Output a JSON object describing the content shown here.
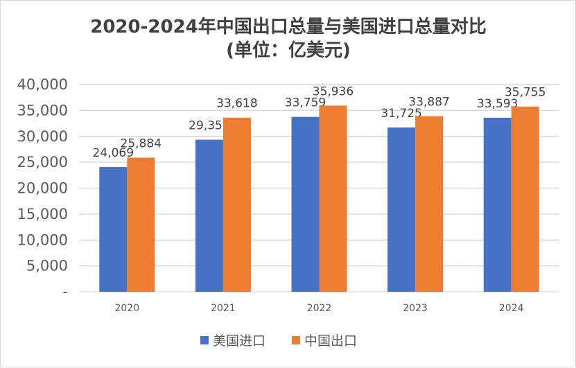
{
  "chart_data": {
    "type": "bar",
    "title": "2020-2024年中国出口总量与美国进口总量对比",
    "subtitle": "(单位：亿美元)",
    "categories": [
      "2020",
      "2021",
      "2022",
      "2023",
      "2024"
    ],
    "series": [
      {
        "name": "美国进口",
        "color": "#4472C4",
        "values": [
          24069,
          29353,
          33759,
          31725,
          33593
        ],
        "labels": [
          "24,069",
          "29,353",
          "33,759",
          "31,725",
          "33,593"
        ]
      },
      {
        "name": "中国出口",
        "color": "#ED7D31",
        "values": [
          25884,
          33618,
          35936,
          33887,
          35755
        ],
        "labels": [
          "25,884",
          "33,618",
          "35,936",
          "33,887",
          "35,755"
        ]
      }
    ],
    "ylim": [
      0,
      40000
    ],
    "yticks": [
      0,
      5000,
      10000,
      15000,
      20000,
      25000,
      30000,
      35000,
      40000
    ],
    "ytick_labels": [
      "-",
      "5,000",
      "10,000",
      "15,000",
      "20,000",
      "25,000",
      "30,000",
      "35,000",
      "40,000"
    ],
    "grid": true,
    "legend": "bottom",
    "xlabel": "",
    "ylabel": ""
  }
}
